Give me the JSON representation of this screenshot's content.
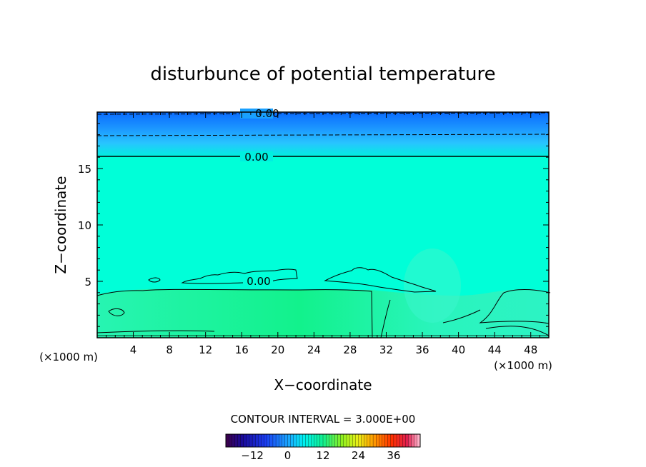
{
  "chart_data": {
    "type": "heatmap",
    "title": "disturbunce of potential temperature",
    "xlabel": "X−coordinate",
    "ylabel": "Z−coordinate",
    "x_unit": "(×1000 m)",
    "y_unit": "(×1000 m)",
    "xlim": [
      0,
      50
    ],
    "ylim": [
      0,
      20
    ],
    "x_ticks": [
      4,
      8,
      12,
      16,
      20,
      24,
      28,
      32,
      36,
      40,
      44,
      48
    ],
    "y_ticks": [
      5,
      10,
      15
    ],
    "contour_labels": [
      {
        "text": "0.00",
        "x": 18.4,
        "z": 19.6
      },
      {
        "text": "0.00",
        "x": 17.5,
        "z": 16.0
      },
      {
        "text": "0.00",
        "x": 17.7,
        "z": 4.9
      }
    ],
    "contour_interval_text": "CONTOUR INTERVAL = 3.000E+00",
    "colorbar": {
      "range": [
        -21,
        45
      ],
      "ticks": [
        -12,
        0,
        12,
        24,
        36
      ]
    },
    "colors": {
      "background_field": "#00ffd8",
      "lower_field": "#10f5a8",
      "top_band": "#19a0ff"
    }
  }
}
